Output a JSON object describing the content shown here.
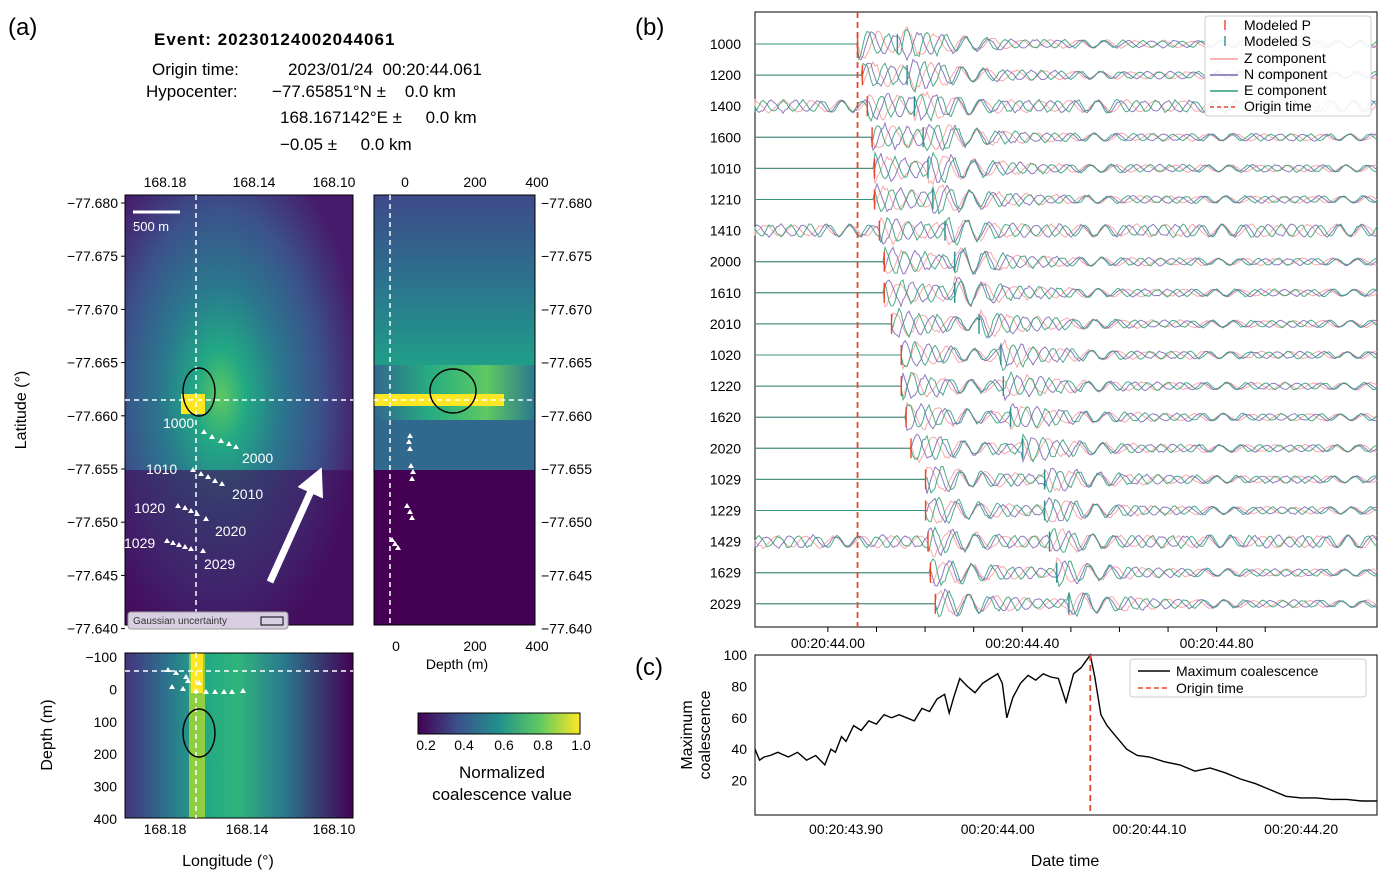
{
  "panel_labels": [
    "(a)",
    "(b)",
    "(c)"
  ],
  "event": {
    "title": "Event: 20230124002044061",
    "origin_label": "Origin time:",
    "origin_value": "2023/01/24  00:20:44.061",
    "hypo_label": "Hypocenter:",
    "lat_line": "−77.65851°N ±    0.0 km",
    "lon_line": "168.167142°E ±     0.0 km",
    "depth_line": "−0.05 ±     0.0 km"
  },
  "colors": {
    "p_pick": "#e8442a",
    "s_pick": "#2f8f8f",
    "z": "#f49b9b",
    "n": "#7a62b4",
    "e": "#2a9d72",
    "origin": "#e8442a",
    "crosshair": "#ffffff",
    "max_coal": "#000000"
  },
  "map": {
    "scale_bar": "500 m",
    "gaussian_label": "Gaussian uncertainty",
    "lon_ticks": [
      "168.18",
      "168.14",
      "168.10"
    ],
    "lat_ticks": [
      "−77.680",
      "−77.675",
      "−77.670",
      "−77.665",
      "−77.660",
      "−77.655",
      "−77.650",
      "−77.645",
      "−77.640"
    ],
    "depth_ticks_top": [
      "0",
      "200",
      "400"
    ],
    "depth_ticks_bottom": [
      "0",
      "200",
      "400"
    ],
    "depth_axis_ticks": [
      "−100",
      "0",
      "100",
      "200",
      "300",
      "400"
    ],
    "xlabel_depth": "Depth (m)",
    "ylabel_lat": "Latitude (°)",
    "ylabel_depth": "Depth (m)",
    "xlabel_lon": "Longitude (°)",
    "station_labels": [
      "1000",
      "2000",
      "1010",
      "2010",
      "1020",
      "2020",
      "1029",
      "2029"
    ],
    "colorbar_ticks": [
      "0.2",
      "0.4",
      "0.6",
      "0.8",
      "1.0"
    ],
    "colorbar_label_1": "Normalized",
    "colorbar_label_2": "coalescence value"
  },
  "chart_data": [
    {
      "type": "line",
      "panel": "(b)",
      "stations": [
        "1000",
        "1200",
        "1400",
        "1600",
        "1010",
        "1210",
        "1410",
        "2000",
        "1610",
        "2010",
        "1020",
        "1220",
        "1620",
        "2020",
        "1029",
        "1229",
        "1429",
        "1629",
        "2029"
      ],
      "p_arrival_s": [
        44.061,
        44.071,
        44.081,
        44.091,
        44.096,
        44.096,
        44.106,
        44.116,
        44.116,
        44.131,
        44.151,
        44.151,
        44.161,
        44.171,
        44.201,
        44.201,
        44.206,
        44.211,
        44.221
      ],
      "s_arrival_s": [
        44.143,
        44.163,
        44.178,
        44.196,
        44.206,
        44.216,
        44.241,
        44.261,
        44.261,
        44.311,
        44.356,
        44.361,
        44.376,
        44.401,
        44.446,
        44.446,
        44.456,
        44.471,
        44.496
      ],
      "xticks": [
        "00:20:44.00",
        "00:20:44.40",
        "00:20:44.80"
      ],
      "xlim_s": [
        43.85,
        45.13
      ],
      "origin_time_s": 44.061,
      "legend": [
        "Modeled P",
        "Modeled S",
        "Z component",
        "N component",
        "E component",
        "Origin time"
      ],
      "legend_loc": "top-right"
    },
    {
      "type": "line",
      "panel": "(c)",
      "ylabel_1": "Maximum",
      "ylabel_2": "coalescence",
      "xlabel": "Date time",
      "yticks": [
        "20",
        "40",
        "60",
        "80",
        "100"
      ],
      "ylim": [
        0,
        100
      ],
      "xticks": [
        "00:20:43.90",
        "00:20:44.00",
        "00:20:44.10",
        "00:20:44.20"
      ],
      "xlim_s": [
        43.84,
        44.25
      ],
      "origin_time_s": 44.061,
      "series": [
        {
          "name": "Maximum coalescence",
          "x": [
            43.84,
            43.843,
            43.846,
            43.85,
            43.855,
            43.862,
            43.868,
            43.874,
            43.88,
            43.886,
            43.89,
            43.893,
            43.897,
            43.9,
            43.905,
            43.91,
            43.915,
            43.92,
            43.925,
            43.93,
            43.935,
            43.94,
            43.945,
            43.95,
            43.955,
            43.96,
            43.965,
            43.968,
            43.971,
            43.975,
            43.98,
            43.985,
            43.99,
            43.995,
            44.0,
            44.003,
            44.006,
            44.01,
            44.015,
            44.02,
            44.025,
            44.03,
            44.035,
            44.04,
            44.045,
            44.05,
            44.055,
            44.058,
            44.061,
            44.064,
            44.068,
            44.072,
            44.078,
            44.085,
            44.092,
            44.1,
            44.11,
            44.12,
            44.13,
            44.14,
            44.15,
            44.16,
            44.17,
            44.18,
            44.19,
            44.2,
            44.21,
            44.22,
            44.23,
            44.24,
            44.25
          ],
          "values": [
            40,
            33,
            35,
            36,
            38,
            35,
            38,
            33,
            36,
            30,
            40,
            38,
            48,
            45,
            55,
            52,
            58,
            56,
            62,
            60,
            62,
            60,
            58,
            66,
            64,
            72,
            75,
            63,
            73,
            85,
            80,
            76,
            82,
            85,
            88,
            82,
            60,
            73,
            82,
            87,
            84,
            88,
            86,
            85,
            70,
            88,
            92,
            96,
            100,
            86,
            62,
            55,
            48,
            40,
            36,
            35,
            32,
            30,
            26,
            28,
            25,
            21,
            18,
            14,
            10,
            9,
            9,
            8,
            8,
            7,
            7
          ]
        }
      ],
      "legend": [
        "Maximum coalescence",
        "Origin time"
      ],
      "legend_loc": "top-right"
    }
  ]
}
